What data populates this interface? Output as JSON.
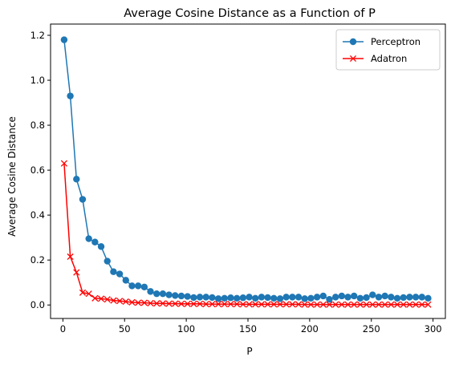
{
  "chart_data": {
    "type": "line",
    "title": "Average Cosine Distance as a Function of P",
    "xlabel": "P",
    "ylabel": "Average Cosine Distance",
    "xlim": [
      -10,
      310
    ],
    "ylim": [
      -0.06,
      1.25
    ],
    "xticks": [
      0,
      50,
      100,
      150,
      200,
      250,
      300
    ],
    "yticks": [
      0.0,
      0.2,
      0.4,
      0.6,
      0.8,
      1.0,
      1.2
    ],
    "xtick_labels": [
      "0",
      "50",
      "100",
      "150",
      "200",
      "250",
      "300"
    ],
    "ytick_labels": [
      "0.0",
      "0.2",
      "0.4",
      "0.6",
      "0.8",
      "1.0",
      "1.2"
    ],
    "grid": false,
    "legend_position": "top-right",
    "x": [
      1,
      6,
      11,
      16,
      21,
      26,
      31,
      36,
      41,
      46,
      51,
      56,
      61,
      66,
      71,
      76,
      81,
      86,
      91,
      96,
      101,
      106,
      111,
      116,
      121,
      126,
      131,
      136,
      141,
      146,
      151,
      156,
      161,
      166,
      171,
      176,
      181,
      186,
      191,
      196,
      201,
      206,
      211,
      216,
      221,
      226,
      231,
      236,
      241,
      246,
      251,
      256,
      261,
      266,
      271,
      276,
      281,
      286,
      291,
      296
    ],
    "series": [
      {
        "name": "Perceptron",
        "color": "#1f77b4",
        "marker": "circle",
        "values": [
          1.18,
          0.93,
          0.56,
          0.47,
          0.295,
          0.28,
          0.26,
          0.195,
          0.148,
          0.138,
          0.11,
          0.085,
          0.085,
          0.08,
          0.06,
          0.05,
          0.05,
          0.045,
          0.042,
          0.04,
          0.038,
          0.033,
          0.035,
          0.035,
          0.033,
          0.028,
          0.03,
          0.032,
          0.03,
          0.032,
          0.035,
          0.03,
          0.035,
          0.033,
          0.03,
          0.028,
          0.035,
          0.035,
          0.035,
          0.028,
          0.03,
          0.035,
          0.04,
          0.025,
          0.035,
          0.04,
          0.035,
          0.04,
          0.03,
          0.033,
          0.045,
          0.035,
          0.04,
          0.035,
          0.03,
          0.033,
          0.035,
          0.035,
          0.035,
          0.03
        ]
      },
      {
        "name": "Adatron",
        "color": "#ff0000",
        "marker": "x",
        "values": [
          0.63,
          0.215,
          0.145,
          0.055,
          0.05,
          0.03,
          0.028,
          0.025,
          0.02,
          0.018,
          0.015,
          0.012,
          0.01,
          0.01,
          0.008,
          0.007,
          0.007,
          0.006,
          0.006,
          0.005,
          0.005,
          0.005,
          0.005,
          0.004,
          0.004,
          0.004,
          0.004,
          0.004,
          0.004,
          0.003,
          0.003,
          0.003,
          0.003,
          0.003,
          0.003,
          0.003,
          0.003,
          0.003,
          0.003,
          0.002,
          0.002,
          0.002,
          0.002,
          0.002,
          0.002,
          0.002,
          0.002,
          0.002,
          0.002,
          0.002,
          0.002,
          0.002,
          0.002,
          0.002,
          0.002,
          0.002,
          0.002,
          0.002,
          0.002,
          0.002
        ]
      }
    ]
  }
}
